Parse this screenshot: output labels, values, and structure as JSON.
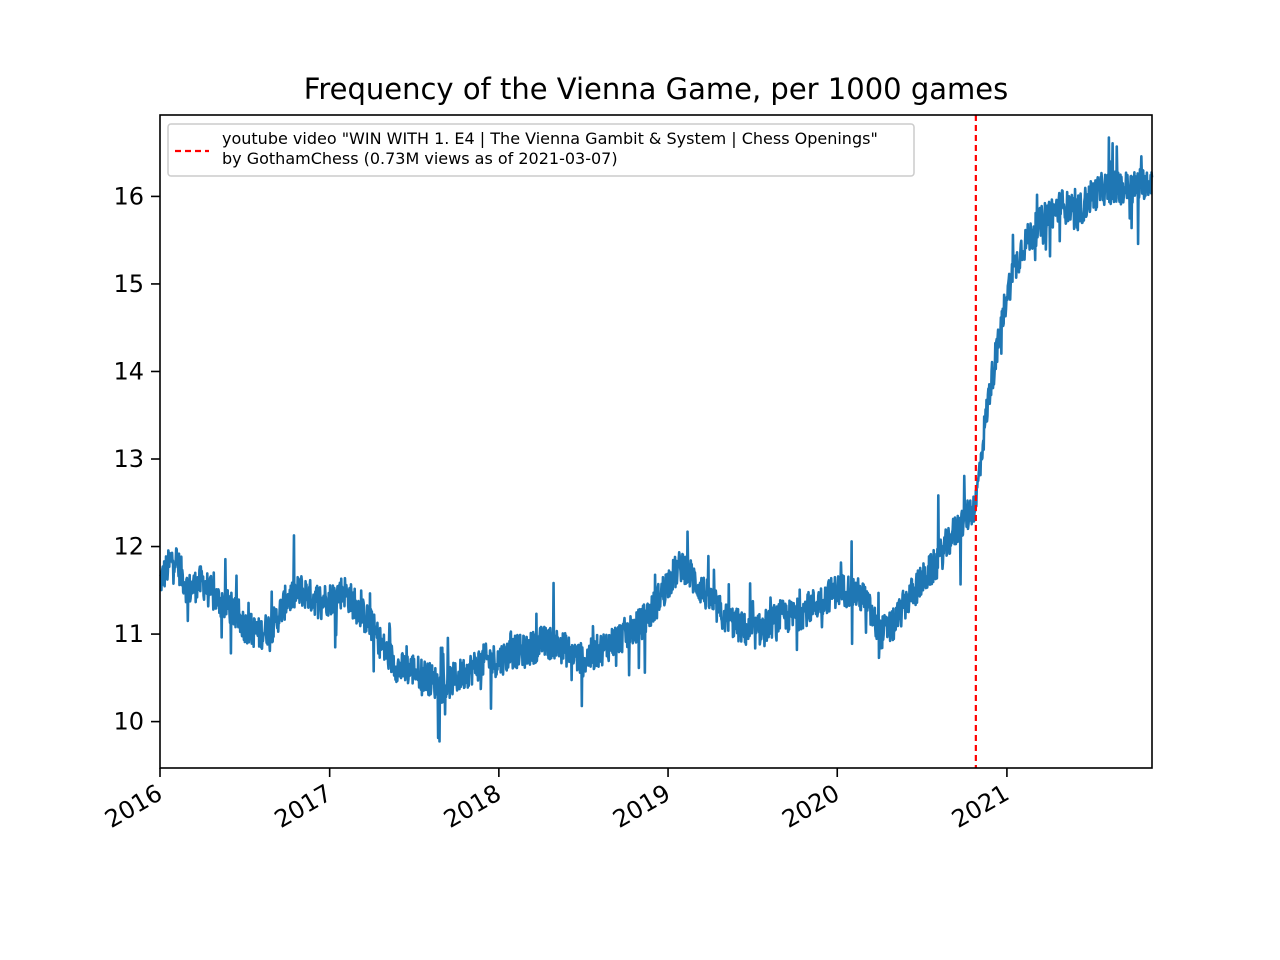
{
  "chart_data": {
    "type": "line",
    "title": "Frequency of the Vienna Game, per 1000 games",
    "xlabel": "",
    "ylabel": "",
    "x_range": [
      "2016-01-01",
      "2021-11-10"
    ],
    "ylim": [
      9.47,
      16.93
    ],
    "x_ticks": [
      {
        "label": "2016",
        "date": "2016-01-01"
      },
      {
        "label": "2017",
        "date": "2017-01-01"
      },
      {
        "label": "2018",
        "date": "2018-01-01"
      },
      {
        "label": "2019",
        "date": "2019-01-01"
      },
      {
        "label": "2020",
        "date": "2020-01-01"
      },
      {
        "label": "2021",
        "date": "2021-01-01"
      }
    ],
    "y_ticks": [
      10,
      11,
      12,
      13,
      14,
      15,
      16
    ],
    "grid": false,
    "legend": {
      "placement": "upper-left",
      "entries": [
        {
          "line1": "youtube video \"WIN WITH 1. E4 | The Vienna Gambit & System | Chess Openings\"",
          "line2": "by GothamChess (0.73M views as of 2021-03-07)"
        }
      ]
    },
    "annotations": [
      {
        "type": "vline",
        "date": "2020-10-26",
        "style": "dashed",
        "color": "#ff0000"
      }
    ],
    "series": [
      {
        "color": "#1f77b4",
        "x": [
          "2016-01-01",
          "2016-02-01",
          "2016-03-01",
          "2016-04-01",
          "2016-05-01",
          "2016-06-01",
          "2016-07-01",
          "2016-08-01",
          "2016-09-01",
          "2016-10-01",
          "2016-11-01",
          "2016-12-01",
          "2017-01-01",
          "2017-02-01",
          "2017-03-01",
          "2017-04-01",
          "2017-05-01",
          "2017-06-01",
          "2017-07-01",
          "2017-08-01",
          "2017-09-01",
          "2017-10-01",
          "2017-11-01",
          "2017-12-01",
          "2018-01-01",
          "2018-02-01",
          "2018-03-01",
          "2018-04-01",
          "2018-05-01",
          "2018-06-01",
          "2018-07-01",
          "2018-08-01",
          "2018-09-01",
          "2018-10-01",
          "2018-11-01",
          "2018-12-01",
          "2019-01-01",
          "2019-02-01",
          "2019-03-01",
          "2019-04-01",
          "2019-05-01",
          "2019-06-01",
          "2019-07-01",
          "2019-08-01",
          "2019-09-01",
          "2019-10-01",
          "2019-11-01",
          "2019-12-01",
          "2020-01-01",
          "2020-02-01",
          "2020-03-01",
          "2020-04-01",
          "2020-05-01",
          "2020-06-01",
          "2020-07-01",
          "2020-08-01",
          "2020-09-01",
          "2020-10-01",
          "2020-10-26",
          "2020-11-10",
          "2020-11-25",
          "2020-12-10",
          "2021-01-01",
          "2021-02-01",
          "2021-03-01",
          "2021-04-01",
          "2021-05-01",
          "2021-06-01",
          "2021-07-01",
          "2021-08-01",
          "2021-09-01",
          "2021-10-01",
          "2021-11-10"
        ],
        "values": [
          11.6,
          11.9,
          11.5,
          11.6,
          11.4,
          11.3,
          11.1,
          11.0,
          11.1,
          11.4,
          11.5,
          11.4,
          11.4,
          11.5,
          11.3,
          11.1,
          10.8,
          10.6,
          10.6,
          10.5,
          10.4,
          10.5,
          10.6,
          10.7,
          10.7,
          10.8,
          10.8,
          10.9,
          10.9,
          10.8,
          10.7,
          10.8,
          10.9,
          11.0,
          11.1,
          11.3,
          11.6,
          11.8,
          11.6,
          11.4,
          11.2,
          11.1,
          11.0,
          11.1,
          11.2,
          11.2,
          11.3,
          11.4,
          11.5,
          11.5,
          11.4,
          11.0,
          11.1,
          11.4,
          11.6,
          11.8,
          12.1,
          12.3,
          12.5,
          13.2,
          13.8,
          14.2,
          14.9,
          15.4,
          15.6,
          15.8,
          15.9,
          15.8,
          16.0,
          16.1,
          16.1,
          16.1,
          16.2
        ],
        "daily_noise_amplitude": 0.35
      }
    ]
  }
}
